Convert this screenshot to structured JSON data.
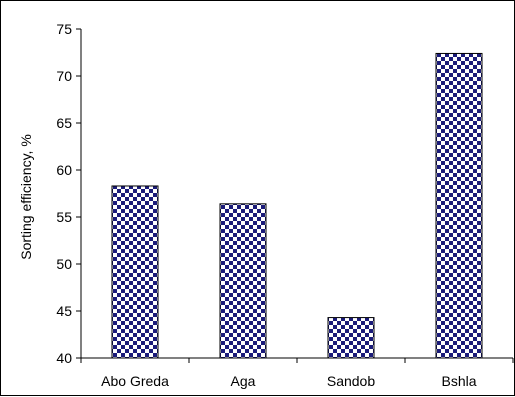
{
  "chart_data": {
    "type": "bar",
    "title": "",
    "xlabel": "",
    "ylabel": "Sorting efficiency, %",
    "categories": [
      "Abo Greda",
      "Aga",
      "Sandob",
      "Bshla"
    ],
    "values": [
      58.3,
      56.4,
      44.3,
      72.4
    ],
    "ylim": [
      40,
      75
    ],
    "yticks": [
      40,
      45,
      50,
      55,
      60,
      65,
      70,
      75
    ],
    "grid": false,
    "legend": "none",
    "bar_pattern": "checkerboard",
    "colors": {
      "bar_fill": "#1b1b7a",
      "bar_pattern_light": "#ffffff",
      "axis": "#000000"
    }
  }
}
